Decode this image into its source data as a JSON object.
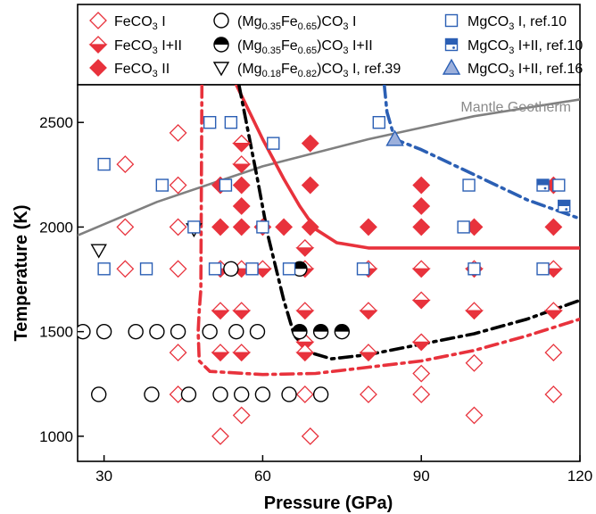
{
  "chart_data": {
    "type": "scatter",
    "xlabel": "Pressure (GPa)",
    "ylabel": "Temperature (K)",
    "xlim": [
      25,
      120
    ],
    "ylim": [
      880,
      2680
    ],
    "xticks": [
      30,
      60,
      90,
      120
    ],
    "yticks": [
      1000,
      1500,
      2000,
      2500
    ],
    "grid": false,
    "legend_position": "top",
    "colors": {
      "red": "#e8323c",
      "blue": "#2b5fb4",
      "black": "#000000",
      "gray": "#808080"
    },
    "legend": [
      {
        "label_pre": "FeCO",
        "label_sub": "3",
        "label_post": " I",
        "marker": "diamond-open-red"
      },
      {
        "label_pre": "FeCO",
        "label_sub": "3",
        "label_post": " I+II",
        "marker": "diamond-half-red"
      },
      {
        "label_pre": "FeCO",
        "label_sub": "3",
        "label_post": " II",
        "marker": "diamond-filled-red"
      },
      {
        "segments": [
          [
            "(Mg",
            ""
          ],
          [
            "0.35",
            "sub"
          ],
          [
            "Fe",
            ""
          ],
          [
            "0.65",
            "sub"
          ],
          [
            ")CO",
            ""
          ],
          [
            "3",
            "sub"
          ],
          [
            " I",
            ""
          ]
        ],
        "marker": "circle-open-black"
      },
      {
        "segments": [
          [
            "(Mg",
            ""
          ],
          [
            "0.35",
            "sub"
          ],
          [
            "Fe",
            ""
          ],
          [
            "0.65",
            "sub"
          ],
          [
            ")CO",
            ""
          ],
          [
            "3",
            "sub"
          ],
          [
            " I+II",
            ""
          ]
        ],
        "marker": "circle-half-black"
      },
      {
        "segments": [
          [
            "(Mg",
            ""
          ],
          [
            "0.18",
            "sub"
          ],
          [
            "Fe",
            ""
          ],
          [
            "0.82",
            "sub"
          ],
          [
            ")CO",
            ""
          ],
          [
            "3",
            "sub"
          ],
          [
            " I, ref.39",
            ""
          ]
        ],
        "marker": "triangle-down-open-black"
      },
      {
        "label_pre": "MgCO",
        "label_sub": "3",
        "label_post": " I, ref.10",
        "marker": "square-open-blue"
      },
      {
        "label_pre": "MgCO",
        "label_sub": "3",
        "label_post": " I+II, ref.10",
        "marker": "square-half-blue"
      },
      {
        "label_pre": "MgCO",
        "label_sub": "3",
        "label_post": " I+II, ref.16",
        "marker": "triangle-up-half-blue"
      }
    ],
    "series": [
      {
        "name": "FeCO3 I",
        "marker": "diamond-open-red",
        "points": [
          [
            34,
            2300
          ],
          [
            34,
            2000
          ],
          [
            34,
            1800
          ],
          [
            44,
            2450
          ],
          [
            44,
            2200
          ],
          [
            44,
            2000
          ],
          [
            44,
            1800
          ],
          [
            44,
            1400
          ],
          [
            44,
            1200
          ],
          [
            52,
            1000
          ],
          [
            56,
            1100
          ],
          [
            68,
            1200
          ],
          [
            69,
            1000
          ],
          [
            80,
            1200
          ],
          [
            90,
            1300
          ],
          [
            90,
            1200
          ],
          [
            100,
            1350
          ],
          [
            100,
            1100
          ],
          [
            115,
            1400
          ],
          [
            115,
            1200
          ]
        ]
      },
      {
        "name": "FeCO3 I+II",
        "marker": "diamond-half-red",
        "points": [
          [
            52,
            1800
          ],
          [
            52,
            1600
          ],
          [
            52,
            1400
          ],
          [
            56,
            2400
          ],
          [
            56,
            2300
          ],
          [
            56,
            1800
          ],
          [
            56,
            1600
          ],
          [
            56,
            1400
          ],
          [
            60,
            1800
          ],
          [
            68,
            1900
          ],
          [
            68,
            1800
          ],
          [
            68,
            1600
          ],
          [
            68,
            1450
          ],
          [
            68,
            1400
          ],
          [
            80,
            1800
          ],
          [
            80,
            1600
          ],
          [
            80,
            1400
          ],
          [
            90,
            1800
          ],
          [
            90,
            1650
          ],
          [
            90,
            1450
          ],
          [
            100,
            1800
          ],
          [
            100,
            1600
          ],
          [
            115,
            1800
          ],
          [
            115,
            1600
          ]
        ]
      },
      {
        "name": "FeCO3 II",
        "marker": "diamond-filled-red",
        "points": [
          [
            52,
            2200
          ],
          [
            52,
            2000
          ],
          [
            56,
            2200
          ],
          [
            56,
            2100
          ],
          [
            56,
            2000
          ],
          [
            60,
            2000
          ],
          [
            64,
            2000
          ],
          [
            69,
            2400
          ],
          [
            69,
            2200
          ],
          [
            69,
            2000
          ],
          [
            80,
            2000
          ],
          [
            90,
            2200
          ],
          [
            90,
            2100
          ],
          [
            90,
            2000
          ],
          [
            100,
            2000
          ],
          [
            115,
            2200
          ],
          [
            115,
            2000
          ]
        ]
      },
      {
        "name": "(Mg0.35Fe0.65)CO3 I",
        "marker": "circle-open-black",
        "points": [
          [
            26,
            1500
          ],
          [
            30,
            1500
          ],
          [
            29,
            1200
          ],
          [
            36,
            1500
          ],
          [
            40,
            1500
          ],
          [
            44,
            1500
          ],
          [
            39,
            1200
          ],
          [
            46,
            1200
          ],
          [
            50,
            1500
          ],
          [
            52,
            1200
          ],
          [
            55,
            1500
          ],
          [
            56,
            1200
          ],
          [
            60,
            1200
          ],
          [
            59,
            1500
          ],
          [
            65,
            1200
          ],
          [
            71,
            1200
          ],
          [
            54,
            1800
          ]
        ]
      },
      {
        "name": "(Mg0.35Fe0.65)CO3 I+II",
        "marker": "circle-half-black",
        "points": [
          [
            67,
            1800
          ],
          [
            67,
            1500
          ],
          [
            71,
            1500
          ],
          [
            75,
            1500
          ]
        ]
      },
      {
        "name": "(Mg0.18Fe0.82)CO3 I, ref.39",
        "marker": "triangle-down-open-black",
        "points": [
          [
            29,
            1890
          ],
          [
            47,
            1990
          ]
        ]
      },
      {
        "name": "MgCO3 I, ref.10",
        "marker": "square-open-blue",
        "points": [
          [
            30,
            2300
          ],
          [
            30,
            1800
          ],
          [
            41,
            2200
          ],
          [
            38,
            1800
          ],
          [
            47,
            2000
          ],
          [
            50,
            2500
          ],
          [
            51,
            1800
          ],
          [
            54,
            2500
          ],
          [
            53,
            2200
          ],
          [
            58,
            1800
          ],
          [
            60,
            2000
          ],
          [
            62,
            2400
          ],
          [
            65,
            1800
          ],
          [
            79,
            1800
          ],
          [
            82,
            2500
          ],
          [
            98,
            2000
          ],
          [
            100,
            1800
          ],
          [
            113,
            1800
          ],
          [
            99,
            2200
          ],
          [
            116,
            2200
          ]
        ]
      },
      {
        "name": "MgCO3 I+II, ref.10",
        "marker": "square-half-blue",
        "points": [
          [
            113,
            2200
          ],
          [
            117,
            2100
          ]
        ]
      },
      {
        "name": "MgCO3 I+II, ref.16",
        "marker": "triangle-up-half-blue",
        "points": [
          [
            85,
            2420
          ]
        ]
      }
    ],
    "curves": [
      {
        "name": "Mantle Geotherm",
        "color": "#808080",
        "style": "solid",
        "points": [
          [
            25,
            1960
          ],
          [
            40,
            2120
          ],
          [
            60,
            2290
          ],
          [
            80,
            2420
          ],
          [
            100,
            2530
          ],
          [
            120,
            2610
          ]
        ]
      },
      {
        "color": "#e8323c",
        "style": "solid",
        "points": [
          [
            55,
            2680
          ],
          [
            60,
            2420
          ],
          [
            64,
            2230
          ],
          [
            67,
            2100
          ],
          [
            70,
            1990
          ],
          [
            74,
            1925
          ],
          [
            80,
            1900
          ],
          [
            100,
            1900
          ],
          [
            120,
            1900
          ]
        ]
      },
      {
        "color": "#000000",
        "style": "dashdot",
        "points": [
          [
            55.5,
            2680
          ],
          [
            59,
            2230
          ],
          [
            61,
            1960
          ],
          [
            64,
            1650
          ],
          [
            66,
            1480
          ],
          [
            69,
            1400
          ],
          [
            73,
            1370
          ],
          [
            80,
            1390
          ],
          [
            90,
            1440
          ],
          [
            100,
            1490
          ],
          [
            110,
            1560
          ],
          [
            120,
            1650
          ]
        ]
      },
      {
        "color": "#e8323c",
        "style": "dashdot",
        "points": [
          [
            48.5,
            2680
          ],
          [
            48.3,
            1700
          ],
          [
            48,
            1600
          ],
          [
            47.8,
            1500
          ],
          [
            48,
            1360
          ],
          [
            50,
            1310
          ],
          [
            60,
            1295
          ],
          [
            70,
            1300
          ],
          [
            80,
            1330
          ],
          [
            90,
            1360
          ],
          [
            100,
            1410
          ],
          [
            110,
            1480
          ],
          [
            120,
            1560
          ]
        ]
      },
      {
        "color": "#2b5fb4",
        "style": "dashdot",
        "points": [
          [
            83,
            2680
          ],
          [
            83.5,
            2550
          ],
          [
            85,
            2420
          ],
          [
            90,
            2370
          ],
          [
            100,
            2250
          ],
          [
            110,
            2130
          ],
          [
            120,
            2040
          ]
        ]
      }
    ]
  }
}
